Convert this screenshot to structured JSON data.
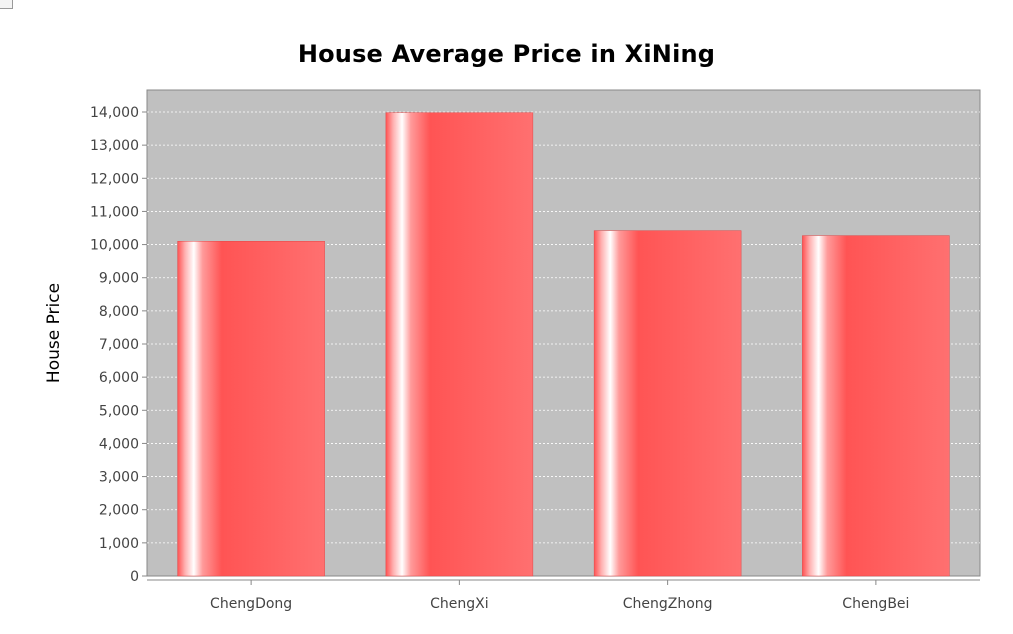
{
  "chart_data": {
    "type": "bar",
    "title": "House Average Price in XiNing",
    "xlabel": "",
    "ylabel": "House Price",
    "categories": [
      "ChengDong",
      "ChengXi",
      "ChengZhong",
      "ChengBei"
    ],
    "values": [
      10100,
      13980,
      10420,
      10270
    ],
    "ylim": [
      0,
      14000
    ],
    "yticks": [
      "0",
      "1,000",
      "2,000",
      "3,000",
      "4,000",
      "5,000",
      "6,000",
      "7,000",
      "8,000",
      "9,000",
      "10,000",
      "11,000",
      "12,000",
      "13,000",
      "14,000"
    ],
    "grid": true,
    "legend": "none",
    "colors": {
      "plot_background": "#c0c0c0",
      "bar": "#ff5555",
      "bar_highlight": "#ffffff",
      "gridline": "#ffffff",
      "axis": "#888888"
    }
  }
}
